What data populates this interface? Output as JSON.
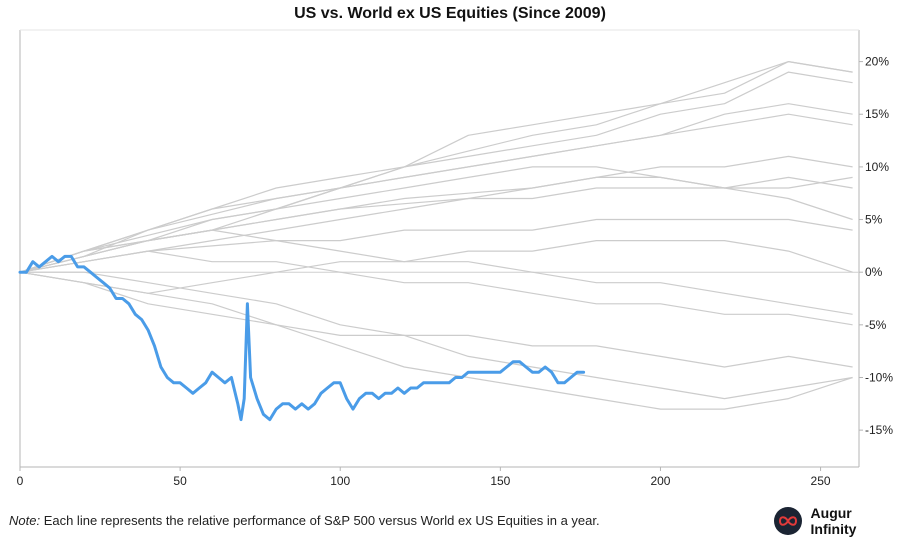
{
  "title": "US vs. World ex US Equities (Since 2009)",
  "note": {
    "label": "Note:",
    "text": " Each line represents the relative performance of S&P 500 versus World ex US Equities in a year."
  },
  "brand": {
    "name": "Augur Infinity",
    "logo_icon": "infinity-icon"
  },
  "colors": {
    "highlight": "#4a9ce8",
    "background_lines": "#cccccc",
    "zero_line": "#cfcfcf",
    "axis": "#b5b5b5"
  },
  "chart_data": {
    "type": "line",
    "title": "US vs. World ex US Equities (Since 2009)",
    "xlabel": "",
    "ylabel": "",
    "xlim": [
      0,
      262
    ],
    "ylim": [
      -18.5,
      23
    ],
    "x_ticks": [
      0,
      50,
      100,
      150,
      200,
      250
    ],
    "x_tick_labels": [
      "0",
      "50",
      "100",
      "150",
      "200",
      "250"
    ],
    "y_ticks": [
      20,
      15,
      10,
      5,
      0,
      -5,
      -10,
      -15
    ],
    "y_tick_labels": [
      "20%",
      "15%",
      "10%",
      "5%",
      "0%",
      "-5%",
      "-10%",
      "-15%"
    ],
    "y_axis_position": "right",
    "grid": false,
    "zero_line": true,
    "background_series": [
      {
        "x": [
          0,
          20,
          40,
          60,
          80,
          100,
          120,
          140,
          160,
          180,
          200,
          220,
          240,
          260
        ],
        "values": [
          0,
          1.5,
          3,
          5,
          6,
          8,
          10,
          11,
          12,
          13,
          15,
          16,
          19,
          18
        ]
      },
      {
        "x": [
          0,
          20,
          40,
          60,
          80,
          100,
          120,
          140,
          160,
          180,
          200,
          220,
          240,
          260
        ],
        "values": [
          0,
          2,
          4,
          6,
          8,
          9,
          10,
          11.5,
          13,
          14,
          16,
          17,
          20,
          19
        ]
      },
      {
        "x": [
          0,
          20,
          40,
          60,
          80,
          100,
          120,
          140,
          160,
          180,
          200,
          220,
          240,
          260
        ],
        "values": [
          0,
          2,
          4,
          5.5,
          7,
          8,
          9,
          10,
          11,
          12,
          13,
          15,
          16,
          15
        ]
      },
      {
        "x": [
          0,
          20,
          40,
          60,
          80,
          100,
          120,
          140,
          160,
          180,
          200,
          220,
          240,
          260
        ],
        "values": [
          0,
          1,
          2,
          3,
          4,
          5,
          6,
          7,
          8,
          9,
          10,
          10,
          11,
          10
        ]
      },
      {
        "x": [
          0,
          20,
          40,
          60,
          80,
          100,
          120,
          140,
          160,
          180,
          200,
          220,
          240,
          260
        ],
        "values": [
          0,
          1.5,
          3,
          4,
          5,
          6,
          7,
          7.5,
          8,
          9,
          9,
          8,
          9,
          8
        ]
      },
      {
        "x": [
          0,
          20,
          40,
          60,
          80,
          100,
          120,
          140,
          160,
          180,
          200,
          220,
          240,
          260
        ],
        "values": [
          0,
          2,
          3.5,
          5,
          6,
          7,
          8,
          9,
          10,
          10,
          9,
          8,
          7,
          5
        ]
      },
      {
        "x": [
          0,
          20,
          40,
          60,
          80,
          100,
          120,
          140,
          160,
          180,
          200,
          220,
          240,
          260
        ],
        "values": [
          0,
          1,
          2,
          2.5,
          3,
          3,
          4,
          4,
          4,
          5,
          5,
          5,
          5,
          4
        ]
      },
      {
        "x": [
          0,
          20,
          40,
          60,
          80,
          100,
          120,
          140,
          160,
          180,
          200,
          220,
          240,
          260
        ],
        "values": [
          0,
          -1,
          -2,
          -1,
          0,
          1,
          1,
          2,
          2,
          3,
          3,
          3,
          2,
          0
        ]
      },
      {
        "x": [
          0,
          20,
          40,
          60,
          80,
          100,
          120,
          140,
          160,
          180,
          200,
          220,
          240,
          260
        ],
        "values": [
          0,
          2,
          3,
          4,
          3,
          2,
          1,
          1,
          0,
          -1,
          -1,
          -2,
          -3,
          -4
        ]
      },
      {
        "x": [
          0,
          20,
          40,
          60,
          80,
          100,
          120,
          140,
          160,
          180,
          200,
          220,
          240,
          260
        ],
        "values": [
          0,
          -1,
          -3,
          -4,
          -5,
          -6,
          -6,
          -6,
          -7,
          -7,
          -8,
          -9,
          -8,
          -9
        ]
      },
      {
        "x": [
          0,
          20,
          40,
          60,
          80,
          100,
          120,
          140,
          160,
          180,
          200,
          220,
          240,
          260
        ],
        "values": [
          0,
          1.5,
          3,
          4,
          6,
          8,
          10,
          13,
          14,
          15,
          16,
          18,
          20,
          19
        ]
      },
      {
        "x": [
          0,
          20,
          40,
          60,
          80,
          100,
          120,
          140,
          160,
          180,
          200,
          220,
          240,
          260
        ],
        "values": [
          0,
          1.5,
          4,
          6,
          7,
          8,
          9,
          10,
          11,
          12,
          13,
          14,
          15,
          14
        ]
      },
      {
        "x": [
          0,
          20,
          40,
          60,
          80,
          100,
          120,
          140,
          160,
          180,
          200,
          220,
          240,
          260
        ],
        "values": [
          0,
          2,
          3,
          4,
          5,
          6,
          6.5,
          7,
          7,
          8,
          8,
          8,
          8,
          9
        ]
      },
      {
        "x": [
          0,
          20,
          40,
          60,
          80,
          100,
          120,
          140,
          160,
          180,
          200,
          220,
          240,
          260
        ],
        "values": [
          0,
          1,
          2,
          1,
          1,
          0,
          -1,
          -1,
          -2,
          -3,
          -3,
          -4,
          -4,
          -5
        ]
      },
      {
        "x": [
          0,
          20,
          40,
          60,
          80,
          100,
          120,
          140,
          160,
          180,
          200,
          220,
          240,
          260
        ],
        "values": [
          0,
          0,
          -1,
          -2,
          -3,
          -5,
          -6,
          -8,
          -9,
          -10,
          -11,
          -12,
          -11,
          -10
        ]
      },
      {
        "x": [
          0,
          20,
          40,
          60,
          80,
          100,
          120,
          140,
          160,
          180,
          200,
          220,
          240,
          260
        ],
        "values": [
          0,
          -1,
          -2,
          -3,
          -5,
          -7,
          -9,
          -10,
          -11,
          -12,
          -13,
          -13,
          -12,
          -10
        ]
      }
    ],
    "highlight_series": {
      "x": [
        0,
        2,
        4,
        6,
        8,
        10,
        12,
        14,
        16,
        18,
        20,
        22,
        24,
        26,
        28,
        30,
        32,
        34,
        36,
        38,
        40,
        42,
        44,
        46,
        48,
        50,
        52,
        54,
        56,
        58,
        60,
        62,
        64,
        66,
        68,
        69,
        70,
        71,
        72,
        74,
        76,
        78,
        80,
        82,
        84,
        86,
        88,
        90,
        92,
        94,
        96,
        98,
        100,
        102,
        104,
        106,
        108,
        110,
        112,
        114,
        116,
        118,
        120,
        122,
        124,
        126,
        128,
        130,
        132,
        134,
        136,
        138,
        140,
        142,
        144,
        146,
        148,
        150,
        152,
        154,
        156,
        158,
        160,
        162,
        164,
        166,
        168,
        170,
        172,
        174,
        176
      ],
      "values": [
        0,
        0,
        1,
        0.5,
        1,
        1.5,
        1,
        1.5,
        1.5,
        0.5,
        0.5,
        0,
        -0.5,
        -1,
        -1.5,
        -2.5,
        -2.5,
        -3,
        -4,
        -4.5,
        -5.5,
        -7,
        -9,
        -10,
        -10.5,
        -10.5,
        -11,
        -11.5,
        -11,
        -10.5,
        -9.5,
        -10,
        -10.5,
        -10,
        -12.5,
        -14,
        -12,
        -3,
        -10,
        -12,
        -13.5,
        -14,
        -13,
        -12.5,
        -12.5,
        -13,
        -12.5,
        -13,
        -12.5,
        -11.5,
        -11,
        -10.5,
        -10.5,
        -12,
        -13,
        -12,
        -11.5,
        -11.5,
        -12,
        -11.5,
        -11.5,
        -11,
        -11.5,
        -11,
        -11,
        -10.5,
        -10.5,
        -10.5,
        -10.5,
        -10.5,
        -10,
        -10,
        -9.5,
        -9.5,
        -9.5,
        -9.5,
        -9.5,
        -9.5,
        -9,
        -8.5,
        -8.5,
        -9,
        -9.5,
        -9.5,
        -9,
        -9.5,
        -10.5,
        -10.5,
        -10,
        -9.5,
        -9.5
      ]
    }
  }
}
